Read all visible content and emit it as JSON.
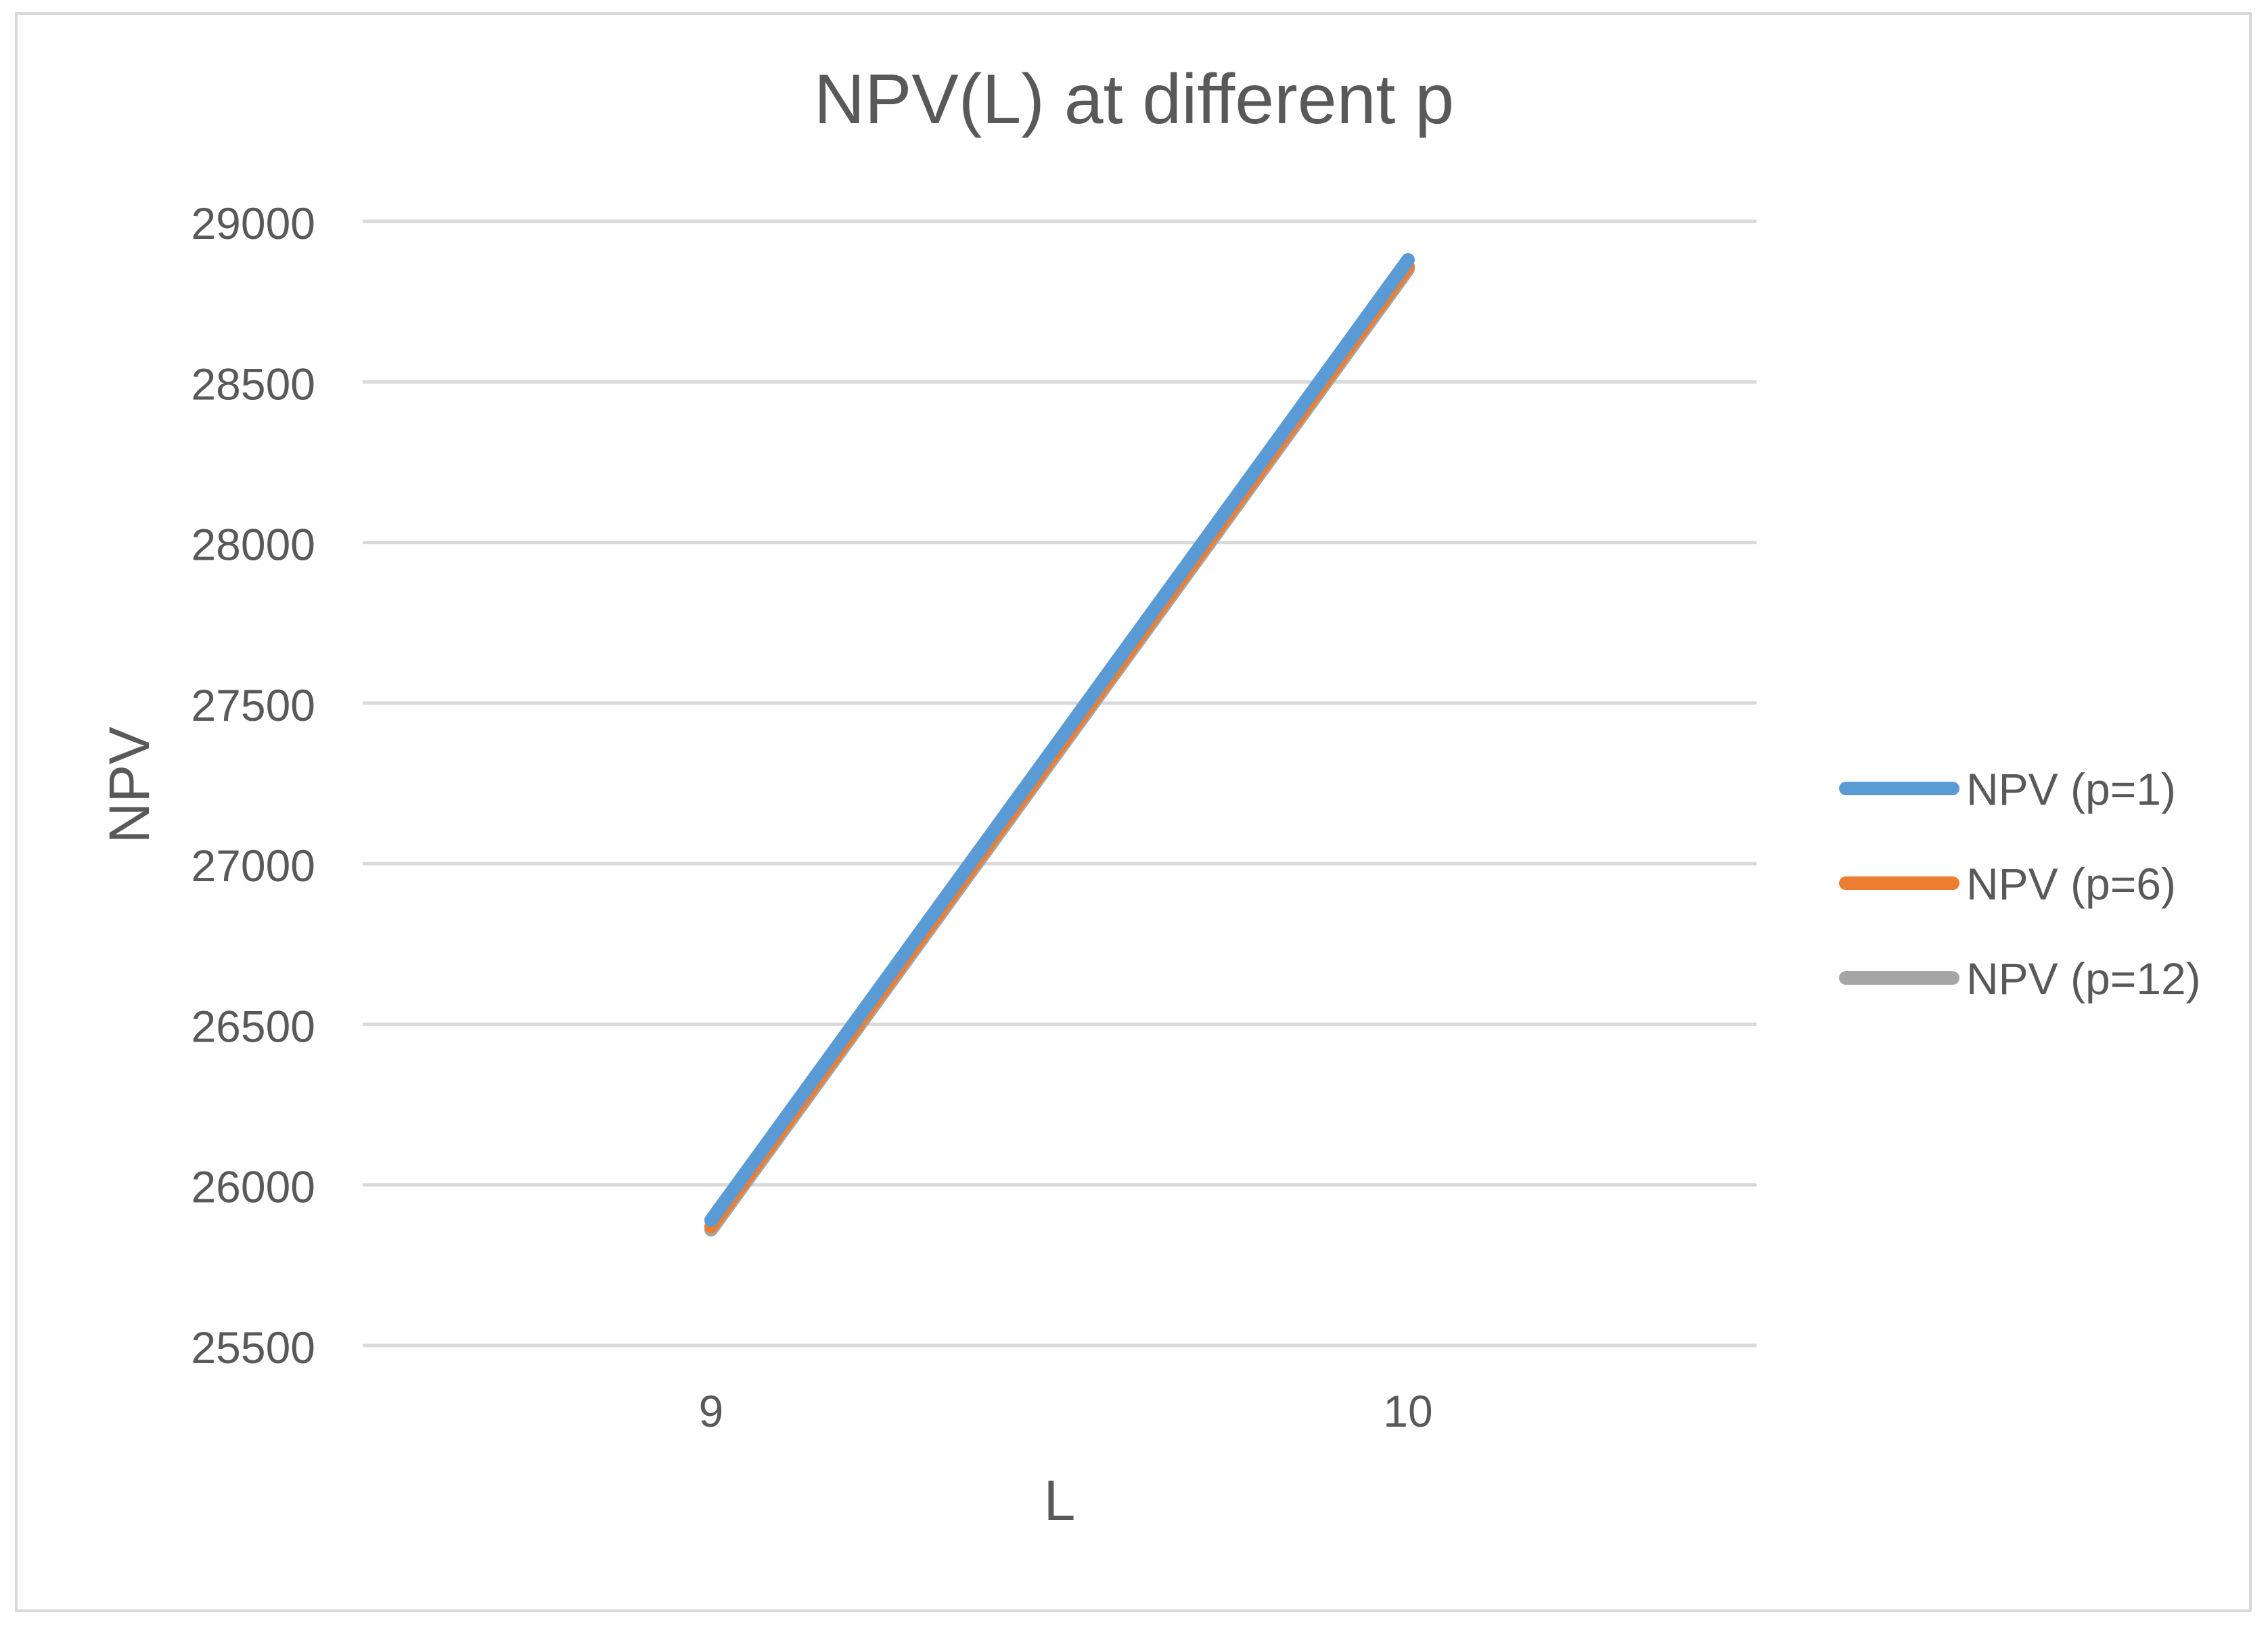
{
  "chart_data": {
    "type": "line",
    "title": "NPV(L) at different p",
    "xlabel": "L",
    "ylabel": "NPV",
    "categories": [
      "9",
      "10"
    ],
    "ylim": [
      25500,
      29000
    ],
    "yticks": [
      "25500",
      "26000",
      "26500",
      "27000",
      "27500",
      "28000",
      "28500",
      "29000"
    ],
    "grid": true,
    "legend_position": "right",
    "series": [
      {
        "name": "NPV (p=1)",
        "values": [
          25890,
          28880
        ],
        "color": "#5B9BD5"
      },
      {
        "name": "NPV (p=6)",
        "values": [
          25870,
          28860
        ],
        "color": "#ED7D31"
      },
      {
        "name": "NPV (p=12)",
        "values": [
          25860,
          28850
        ],
        "color": "#A5A5A5"
      }
    ],
    "colors": {
      "gridline": "#D9D9D9",
      "text": "#595959",
      "border": "#D9D9D9"
    }
  }
}
